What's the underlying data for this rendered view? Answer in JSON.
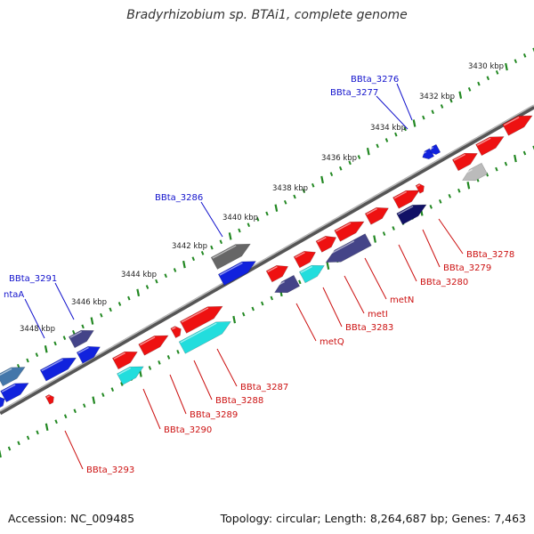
{
  "title": "Bradyrhizobium sp. BTAi1, complete genome",
  "footer": {
    "accession": "Accession: NC_009485",
    "topology": "Topology: circular; Length: 8,264,687 bp; Genes: 7,463"
  },
  "colors": {
    "backbone": "#777777",
    "ruler_ticks": "#228822",
    "gene_red": "#ee1111",
    "gene_blue": "#1122dd",
    "gene_cyan": "#22dddd",
    "gene_slate": "#444488",
    "gene_navy": "#111166",
    "gene_grey": "#666666",
    "gene_lightgrey": "#bbbbbb",
    "gene_steel": "#4477aa",
    "label_blue": "#1111cc",
    "label_red": "#cc1111"
  },
  "ruler": {
    "unit": "kbp",
    "labels": [
      "3430 kbp",
      "3432 kbp",
      "3434 kbp",
      "3436 kbp",
      "3438 kbp",
      "3440 kbp",
      "3442 kbp",
      "3444 kbp",
      "3446 kbp",
      "3448 kbp"
    ]
  },
  "genes": [
    {
      "name": "BBta_3276",
      "color": "blue",
      "strand": "top"
    },
    {
      "name": "BBta_3277",
      "color": "blue",
      "strand": "top"
    },
    {
      "name": "BBta_3286",
      "color": "grey",
      "strand": "top"
    },
    {
      "name": "BBta_3291",
      "color": "slate",
      "strand": "top"
    },
    {
      "name": "ntaA",
      "color": "blue",
      "strand": "top"
    },
    {
      "name": "BBta_3278",
      "color": "red",
      "strand": "bottom"
    },
    {
      "name": "BBta_3279",
      "color": "red",
      "strand": "bottom"
    },
    {
      "name": "BBta_3280",
      "color": "red",
      "strand": "bottom"
    },
    {
      "name": "metN",
      "color": "red",
      "strand": "bottom"
    },
    {
      "name": "metI",
      "color": "red",
      "strand": "bottom"
    },
    {
      "name": "BBta_3283",
      "color": "red",
      "strand": "bottom"
    },
    {
      "name": "metQ",
      "color": "red",
      "strand": "bottom"
    },
    {
      "name": "BBta_3287",
      "color": "red",
      "strand": "bottom"
    },
    {
      "name": "BBta_3288",
      "color": "red",
      "strand": "bottom"
    },
    {
      "name": "BBta_3289",
      "color": "red",
      "strand": "bottom"
    },
    {
      "name": "BBta_3290",
      "color": "red",
      "strand": "bottom"
    },
    {
      "name": "BBta_3293",
      "color": "red",
      "strand": "bottom"
    }
  ]
}
